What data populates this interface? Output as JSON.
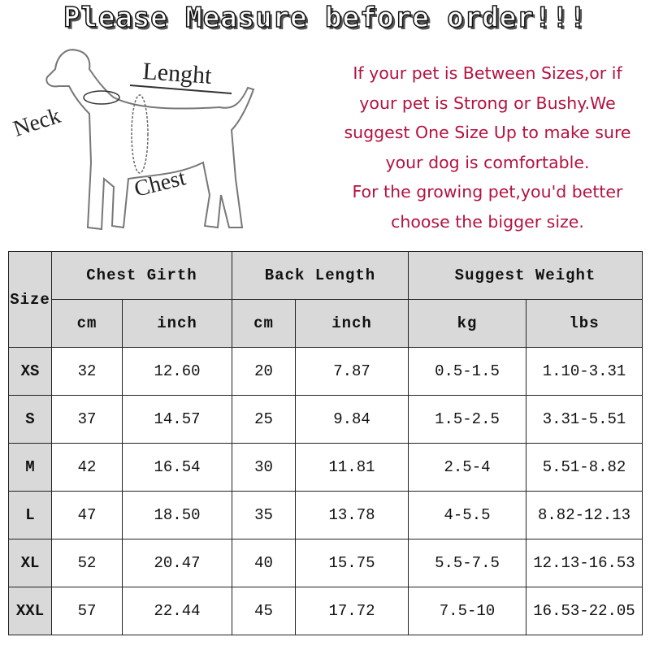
{
  "title": "Please Measure before order!!!",
  "diagram": {
    "length": "Lenght",
    "neck": "Neck",
    "chest": "Chest"
  },
  "notice": [
    "If your pet is Between Sizes,or if",
    "your pet is Strong or Bushy.We",
    "suggest One Size Up to make sure",
    "your dog is comfortable.",
    "For the growing pet,you'd better",
    "choose the bigger size."
  ],
  "colors": {
    "notice": "#b3123f",
    "header_bg": "#d9d9d9"
  },
  "table": {
    "size_header": "Size",
    "groups": [
      "Chest Girth",
      "Back Length",
      "Suggest Weight"
    ],
    "units": [
      "cm",
      "inch",
      "cm",
      "inch",
      "kg",
      "lbs"
    ],
    "rows": [
      [
        "XS",
        "32",
        "12.60",
        "20",
        "7.87",
        "0.5-1.5",
        "1.10-3.31"
      ],
      [
        "S",
        "37",
        "14.57",
        "25",
        "9.84",
        "1.5-2.5",
        "3.31-5.51"
      ],
      [
        "M",
        "42",
        "16.54",
        "30",
        "11.81",
        "2.5-4",
        "5.51-8.82"
      ],
      [
        "L",
        "47",
        "18.50",
        "35",
        "13.78",
        "4-5.5",
        "8.82-12.13"
      ],
      [
        "XL",
        "52",
        "20.47",
        "40",
        "15.75",
        "5.5-7.5",
        "12.13-16.53"
      ],
      [
        "XXL",
        "57",
        "22.44",
        "45",
        "17.72",
        "7.5-10",
        "16.53-22.05"
      ]
    ]
  }
}
